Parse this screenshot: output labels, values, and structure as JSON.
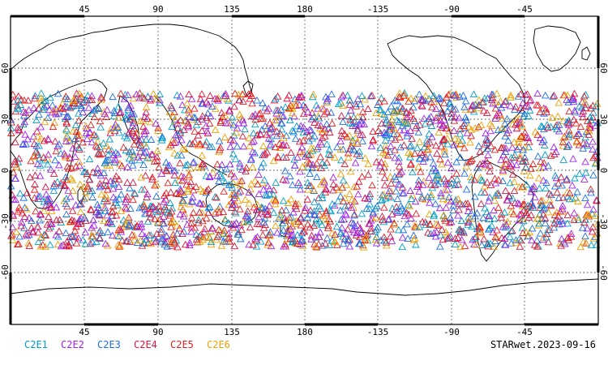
{
  "chart_data": {
    "type": "scatter",
    "projection": "cylindrical equidistant, centered 180",
    "xlim": [
      0,
      360
    ],
    "ylim": [
      -90,
      90
    ],
    "x_ticks": [
      "45",
      "90",
      "135",
      "180",
      "-135",
      "-90",
      "-45"
    ],
    "y_ticks_left": [
      "60",
      "30",
      "0",
      "-30",
      "-60"
    ],
    "y_ticks_right": [
      "60",
      "30",
      "0",
      "-30",
      "-60"
    ],
    "grid": "dotted",
    "marker": "open-triangle",
    "observation_band_lat": [
      -45,
      45
    ],
    "series": [
      {
        "name": "C2E1",
        "color": "#00a0c8"
      },
      {
        "name": "C2E2",
        "color": "#a020f0"
      },
      {
        "name": "C2E3",
        "color": "#1e6ee6"
      },
      {
        "name": "C2E4",
        "color": "#dc143c"
      },
      {
        "name": "C2E5",
        "color": "#e61e1e"
      },
      {
        "name": "C2E6",
        "color": "#f0a000"
      }
    ]
  },
  "footer": {
    "stamp": "STARwet.2023-09-16"
  }
}
